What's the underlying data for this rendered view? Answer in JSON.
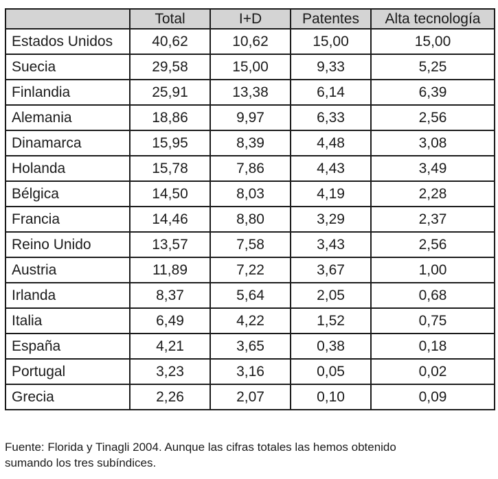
{
  "table": {
    "columns": [
      "",
      "Total",
      "I+D",
      "Patentes",
      "Alta tecnología"
    ],
    "rows": [
      {
        "country": "Estados Unidos",
        "total": "40,62",
        "id": "10,62",
        "patentes": "15,00",
        "alta": "15,00"
      },
      {
        "country": "Suecia",
        "total": "29,58",
        "id": "15,00",
        "patentes": "9,33",
        "alta": "5,25"
      },
      {
        "country": "Finlandia",
        "total": "25,91",
        "id": "13,38",
        "patentes": "6,14",
        "alta": "6,39"
      },
      {
        "country": "Alemania",
        "total": "18,86",
        "id": "9,97",
        "patentes": "6,33",
        "alta": "2,56"
      },
      {
        "country": "Dinamarca",
        "total": "15,95",
        "id": "8,39",
        "patentes": "4,48",
        "alta": "3,08"
      },
      {
        "country": "Holanda",
        "total": "15,78",
        "id": "7,86",
        "patentes": "4,43",
        "alta": "3,49"
      },
      {
        "country": "Bélgica",
        "total": "14,50",
        "id": "8,03",
        "patentes": "4,19",
        "alta": "2,28"
      },
      {
        "country": "Francia",
        "total": "14,46",
        "id": "8,80",
        "patentes": "3,29",
        "alta": "2,37"
      },
      {
        "country": "Reino Unido",
        "total": "13,57",
        "id": "7,58",
        "patentes": "3,43",
        "alta": "2,56"
      },
      {
        "country": "Austria",
        "total": "11,89",
        "id": "7,22",
        "patentes": "3,67",
        "alta": "1,00"
      },
      {
        "country": "Irlanda",
        "total": "8,37",
        "id": "5,64",
        "patentes": "2,05",
        "alta": "0,68"
      },
      {
        "country": "Italia",
        "total": "6,49",
        "id": "4,22",
        "patentes": "1,52",
        "alta": "0,75"
      },
      {
        "country": "España",
        "total": "4,21",
        "id": "3,65",
        "patentes": "0,38",
        "alta": "0,18"
      },
      {
        "country": "Portugal",
        "total": "3,23",
        "id": "3,16",
        "patentes": "0,05",
        "alta": "0,02"
      },
      {
        "country": "Grecia",
        "total": "2,26",
        "id": "2,07",
        "patentes": "0,10",
        "alta": "0,09"
      }
    ]
  },
  "caption": {
    "line1": "Fuente: Florida y Tinagli 2004. Aunque las cifras totales las hemos obtenido",
    "line2": "sumando los tres subíndices."
  }
}
